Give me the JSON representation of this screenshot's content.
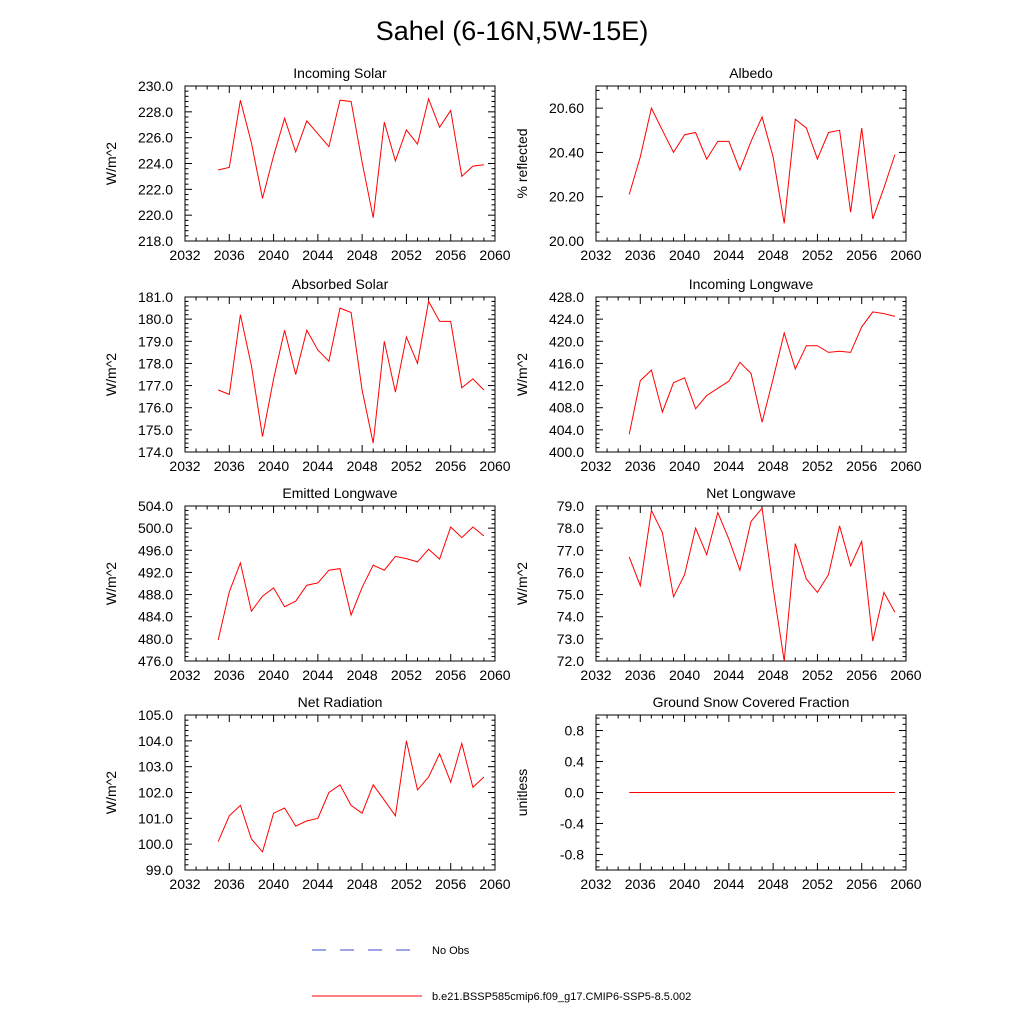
{
  "title": "Sahel (6-16N,5W-15E)",
  "colors": {
    "model_line": "#ff0000",
    "obs_line": "#3b4bcc",
    "axis": "#000000"
  },
  "legend": {
    "placement": "bottom-center",
    "obs_label": "No Obs",
    "model_label": "b.e21.BSSP585cmip6.f09_g17.CMIP6-SSP5-8.5.002"
  },
  "chart_data": [
    {
      "type": "line",
      "title": "Incoming Solar",
      "ylabel": "W/m^2",
      "xlim": [
        2032,
        2060
      ],
      "ylim": [
        218.0,
        230.0
      ],
      "xticks": [
        "2032",
        "2036",
        "2040",
        "2044",
        "2048",
        "2052",
        "2056",
        "2060"
      ],
      "yticks": [
        "218.0",
        "220.0",
        "222.0",
        "224.0",
        "226.0",
        "228.0",
        "230.0"
      ],
      "x": [
        2035,
        2036,
        2037,
        2038,
        2039,
        2040,
        2041,
        2042,
        2043,
        2044,
        2045,
        2046,
        2047,
        2048,
        2049,
        2050,
        2051,
        2052,
        2053,
        2054,
        2055,
        2056,
        2057,
        2058,
        2059
      ],
      "series": [
        {
          "name": "b.e21.BSSP585cmip6.f09_g17.CMIP6-SSP5-8.5.002",
          "values": [
            223.5,
            223.7,
            228.9,
            225.6,
            221.3,
            224.6,
            227.5,
            224.9,
            227.3,
            226.3,
            225.3,
            228.9,
            228.8,
            224.1,
            219.8,
            227.2,
            224.2,
            226.6,
            225.5,
            229.0,
            226.8,
            228.1,
            223.0,
            223.8,
            223.9
          ]
        }
      ]
    },
    {
      "type": "line",
      "title": "Albedo",
      "ylabel": "% reflected",
      "xlim": [
        2032,
        2060
      ],
      "ylim": [
        20.0,
        20.7
      ],
      "xticks": [
        "2032",
        "2036",
        "2040",
        "2044",
        "2048",
        "2052",
        "2056",
        "2060"
      ],
      "yticks": [
        "20.00",
        "20.20",
        "20.40",
        "20.60"
      ],
      "x": [
        2035,
        2036,
        2037,
        2038,
        2039,
        2040,
        2041,
        2042,
        2043,
        2044,
        2045,
        2046,
        2047,
        2048,
        2049,
        2050,
        2051,
        2052,
        2053,
        2054,
        2055,
        2056,
        2057,
        2058,
        2059
      ],
      "series": [
        {
          "name": "b.e21.BSSP585cmip6.f09_g17.CMIP6-SSP5-8.5.002",
          "values": [
            20.21,
            20.38,
            20.6,
            20.5,
            20.4,
            20.48,
            20.49,
            20.37,
            20.45,
            20.45,
            20.32,
            20.45,
            20.56,
            20.38,
            20.08,
            20.55,
            20.51,
            20.37,
            20.49,
            20.5,
            20.13,
            20.51,
            20.1,
            20.24,
            20.39
          ]
        }
      ]
    },
    {
      "type": "line",
      "title": "Absorbed Solar",
      "ylabel": "W/m^2",
      "xlim": [
        2032,
        2060
      ],
      "ylim": [
        174.0,
        181.0
      ],
      "xticks": [
        "2032",
        "2036",
        "2040",
        "2044",
        "2048",
        "2052",
        "2056",
        "2060"
      ],
      "yticks": [
        "174.0",
        "175.0",
        "176.0",
        "177.0",
        "178.0",
        "179.0",
        "180.0",
        "181.0"
      ],
      "x": [
        2035,
        2036,
        2037,
        2038,
        2039,
        2040,
        2041,
        2042,
        2043,
        2044,
        2045,
        2046,
        2047,
        2048,
        2049,
        2050,
        2051,
        2052,
        2053,
        2054,
        2055,
        2056,
        2057,
        2058,
        2059
      ],
      "series": [
        {
          "name": "b.e21.BSSP585cmip6.f09_g17.CMIP6-SSP5-8.5.002",
          "values": [
            176.8,
            176.6,
            180.2,
            177.9,
            174.7,
            177.3,
            179.5,
            177.5,
            179.5,
            178.6,
            178.1,
            180.5,
            180.3,
            176.8,
            174.4,
            179.0,
            176.7,
            179.2,
            178.0,
            180.8,
            179.9,
            179.9,
            176.9,
            177.3,
            176.8
          ]
        }
      ]
    },
    {
      "type": "line",
      "title": "Incoming Longwave",
      "ylabel": "W/m^2",
      "xlim": [
        2032,
        2060
      ],
      "ylim": [
        400.0,
        428.0
      ],
      "xticks": [
        "2032",
        "2036",
        "2040",
        "2044",
        "2048",
        "2052",
        "2056",
        "2060"
      ],
      "yticks": [
        "400.0",
        "404.0",
        "408.0",
        "412.0",
        "416.0",
        "420.0",
        "424.0",
        "428.0"
      ],
      "x": [
        2035,
        2036,
        2037,
        2038,
        2039,
        2040,
        2041,
        2042,
        2043,
        2044,
        2045,
        2046,
        2047,
        2048,
        2049,
        2050,
        2051,
        2052,
        2053,
        2054,
        2055,
        2056,
        2057,
        2058,
        2059
      ],
      "series": [
        {
          "name": "b.e21.BSSP585cmip6.f09_g17.CMIP6-SSP5-8.5.002",
          "values": [
            403.2,
            412.9,
            414.8,
            407.2,
            412.5,
            413.4,
            407.8,
            410.2,
            411.5,
            412.8,
            416.2,
            414.2,
            405.4,
            413.2,
            421.5,
            415.0,
            419.2,
            419.2,
            418.0,
            418.2,
            418.0,
            422.6,
            425.3,
            425.0,
            424.5
          ]
        }
      ]
    },
    {
      "type": "line",
      "title": "Emitted Longwave",
      "ylabel": "W/m^2",
      "xlim": [
        2032,
        2060
      ],
      "ylim": [
        476.0,
        504.0
      ],
      "xticks": [
        "2032",
        "2036",
        "2040",
        "2044",
        "2048",
        "2052",
        "2056",
        "2060"
      ],
      "yticks": [
        "476.0",
        "480.0",
        "484.0",
        "488.0",
        "492.0",
        "496.0",
        "500.0",
        "504.0"
      ],
      "x": [
        2035,
        2036,
        2037,
        2038,
        2039,
        2040,
        2041,
        2042,
        2043,
        2044,
        2045,
        2046,
        2047,
        2048,
        2049,
        2050,
        2051,
        2052,
        2053,
        2054,
        2055,
        2056,
        2057,
        2058,
        2059
      ],
      "series": [
        {
          "name": "b.e21.BSSP585cmip6.f09_g17.CMIP6-SSP5-8.5.002",
          "values": [
            479.8,
            488.5,
            493.7,
            485.0,
            487.7,
            489.2,
            485.8,
            486.8,
            489.7,
            490.1,
            492.4,
            492.7,
            484.3,
            489.3,
            493.3,
            492.4,
            494.9,
            494.5,
            493.9,
            496.2,
            494.4,
            500.2,
            498.3,
            500.2,
            498.6
          ]
        }
      ]
    },
    {
      "type": "line",
      "title": "Net Longwave",
      "ylabel": "W/m^2",
      "xlim": [
        2032,
        2060
      ],
      "ylim": [
        72.0,
        79.0
      ],
      "xticks": [
        "2032",
        "2036",
        "2040",
        "2044",
        "2048",
        "2052",
        "2056",
        "2060"
      ],
      "yticks": [
        "72.0",
        "73.0",
        "74.0",
        "75.0",
        "76.0",
        "77.0",
        "78.0",
        "79.0"
      ],
      "x": [
        2035,
        2036,
        2037,
        2038,
        2039,
        2040,
        2041,
        2042,
        2043,
        2044,
        2045,
        2046,
        2047,
        2048,
        2049,
        2050,
        2051,
        2052,
        2053,
        2054,
        2055,
        2056,
        2057,
        2058,
        2059
      ],
      "series": [
        {
          "name": "b.e21.BSSP585cmip6.f09_g17.CMIP6-SSP5-8.5.002",
          "values": [
            76.7,
            75.4,
            78.8,
            77.8,
            74.9,
            75.9,
            78.0,
            76.8,
            78.7,
            77.5,
            76.1,
            78.3,
            78.9,
            75.3,
            72.0,
            77.3,
            75.7,
            75.1,
            75.9,
            78.1,
            76.3,
            77.4,
            72.9,
            75.1,
            74.2
          ]
        }
      ]
    },
    {
      "type": "line",
      "title": "Net Radiation",
      "ylabel": "W/m^2",
      "xlim": [
        2032,
        2060
      ],
      "ylim": [
        99.0,
        105.0
      ],
      "xticks": [
        "2032",
        "2036",
        "2040",
        "2044",
        "2048",
        "2052",
        "2056",
        "2060"
      ],
      "yticks": [
        "99.0",
        "100.0",
        "101.0",
        "102.0",
        "103.0",
        "104.0",
        "105.0"
      ],
      "x": [
        2035,
        2036,
        2037,
        2038,
        2039,
        2040,
        2041,
        2042,
        2043,
        2044,
        2045,
        2046,
        2047,
        2048,
        2049,
        2050,
        2051,
        2052,
        2053,
        2054,
        2055,
        2056,
        2057,
        2058,
        2059
      ],
      "series": [
        {
          "name": "b.e21.BSSP585cmip6.f09_g17.CMIP6-SSP5-8.5.002",
          "values": [
            100.1,
            101.1,
            101.5,
            100.2,
            99.7,
            101.2,
            101.4,
            100.7,
            100.9,
            101.0,
            102.0,
            102.3,
            101.5,
            101.2,
            102.3,
            101.7,
            101.1,
            104.0,
            102.1,
            102.6,
            103.5,
            102.4,
            103.9,
            102.2,
            102.6
          ]
        }
      ]
    },
    {
      "type": "line",
      "title": "Ground Snow Covered Fraction",
      "ylabel": "unitless",
      "xlim": [
        2032,
        2060
      ],
      "ylim": [
        -1.0,
        1.0
      ],
      "xticks": [
        "2032",
        "2036",
        "2040",
        "2044",
        "2048",
        "2052",
        "2056",
        "2060"
      ],
      "yticks": [
        "-0.8",
        "-0.4",
        "0.0",
        "0.4",
        "0.8"
      ],
      "x": [
        2035,
        2036,
        2037,
        2038,
        2039,
        2040,
        2041,
        2042,
        2043,
        2044,
        2045,
        2046,
        2047,
        2048,
        2049,
        2050,
        2051,
        2052,
        2053,
        2054,
        2055,
        2056,
        2057,
        2058,
        2059
      ],
      "series": [
        {
          "name": "b.e21.BSSP585cmip6.f09_g17.CMIP6-SSP5-8.5.002",
          "values": [
            0,
            0,
            0,
            0,
            0,
            0,
            0,
            0,
            0,
            0,
            0,
            0,
            0,
            0,
            0,
            0,
            0,
            0,
            0,
            0,
            0,
            0,
            0,
            0,
            0
          ]
        }
      ]
    }
  ]
}
